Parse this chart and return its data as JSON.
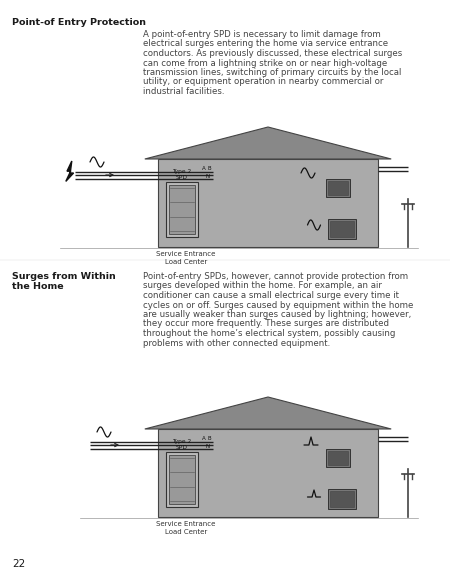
{
  "page_number": "22",
  "background_color": "#ffffff",
  "section1_title": "Point-of Entry Protection",
  "section1_body": "A point-of-entry SPD is necessary to limit damage from\nelectrical surges entering the home via service entrance\nconductors. As previously discussed, these electrical surges\ncan come from a lightning strike on or near high-voltage\ntransmission lines, switching of primary circuits by the local\nutility, or equipment operation in nearby commercial or\nindustrial facilities.",
  "section2_title": "Surges from Within\nthe Home",
  "section2_body": "Point-of-entry SPDs, however, cannot provide protection from\nsurges developed within the home. For example, an air\nconditioner can cause a small electrical surge every time it\ncycles on or off. Surges caused by equipment within the home\nare usually weaker than surges caused by lightning; however,\nthey occur more frequently. These surges are distributed\nthroughout the home’s electrical system, possibly causing\nproblems with other connected equipment.",
  "text_color": "#1a1a1a",
  "body_color": "#444444",
  "house_fill": "#aaaaaa",
  "roof_fill": "#888888",
  "spd_fill": "#cccccc",
  "box_fill": "#888888",
  "wire_color": "#222222",
  "pole_color": "#444444"
}
